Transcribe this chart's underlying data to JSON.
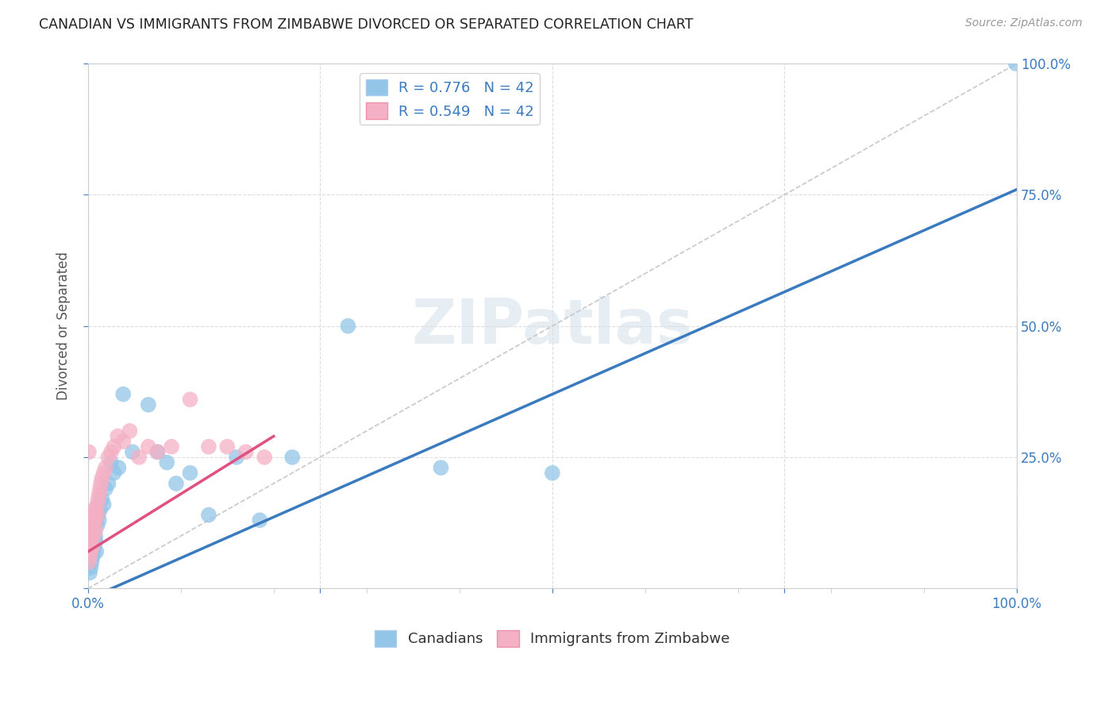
{
  "title": "CANADIAN VS IMMIGRANTS FROM ZIMBABWE DIVORCED OR SEPARATED CORRELATION CHART",
  "source": "Source: ZipAtlas.com",
  "ylabel": "Divorced or Separated",
  "watermark": "ZIPatlas",
  "legend_entries": [
    {
      "label": "R = 0.776   N = 42",
      "color": "#aec6e8"
    },
    {
      "label": "R = 0.549   N = 42",
      "color": "#f4b8c8"
    }
  ],
  "legend_bottom": [
    "Canadians",
    "Immigrants from Zimbabwe"
  ],
  "blue_line_intercept": -0.02,
  "blue_line_slope": 0.78,
  "pink_line_intercept": 0.07,
  "pink_line_slope": 1.1,
  "pink_line_xmax": 0.2,
  "diagonal_color": "#c8c8c8",
  "xlim": [
    0.0,
    1.0
  ],
  "ylim": [
    0.0,
    1.0
  ],
  "xtick_positions": [
    0.0,
    0.25,
    0.5,
    0.75,
    1.0
  ],
  "xtick_labels_show": [
    "0.0%",
    "",
    "",
    "",
    "100.0%"
  ],
  "ytick_positions": [
    0.0,
    0.25,
    0.5,
    0.75,
    1.0
  ],
  "ytick_labels_right": [
    "",
    "25.0%",
    "50.0%",
    "75.0%",
    "100.0%"
  ],
  "grid_color": "#dddddd",
  "blue_scatter_color": "#92c5e8",
  "pink_scatter_color": "#f4b0c4",
  "blue_line_color": "#3a7bbf",
  "pink_line_color": "#e05080",
  "title_color": "#222222",
  "source_color": "#999999",
  "axis_label_color": "#555555",
  "tick_color": "#3a7bbf",
  "background_color": "#ffffff",
  "canadians_x": [
    0.001,
    0.002,
    0.002,
    0.003,
    0.003,
    0.004,
    0.004,
    0.005,
    0.005,
    0.006,
    0.006,
    0.007,
    0.007,
    0.008,
    0.008,
    0.009,
    0.01,
    0.011,
    0.012,
    0.013,
    0.015,
    0.017,
    0.019,
    0.022,
    0.025,
    0.028,
    0.033,
    0.038,
    0.048,
    0.065,
    0.075,
    0.085,
    0.095,
    0.11,
    0.13,
    0.16,
    0.185,
    0.22,
    0.28,
    0.38,
    0.5,
    0.999
  ],
  "canadians_y": [
    0.05,
    0.03,
    0.07,
    0.04,
    0.08,
    0.05,
    0.09,
    0.06,
    0.1,
    0.07,
    0.11,
    0.08,
    0.12,
    0.09,
    0.1,
    0.07,
    0.12,
    0.14,
    0.13,
    0.15,
    0.17,
    0.16,
    0.19,
    0.2,
    0.24,
    0.22,
    0.23,
    0.37,
    0.26,
    0.35,
    0.26,
    0.24,
    0.2,
    0.22,
    0.14,
    0.25,
    0.13,
    0.25,
    0.5,
    0.23,
    0.22,
    1.0
  ],
  "zimbabwe_x": [
    0.001,
    0.001,
    0.002,
    0.002,
    0.003,
    0.003,
    0.004,
    0.004,
    0.005,
    0.005,
    0.006,
    0.006,
    0.007,
    0.007,
    0.008,
    0.008,
    0.009,
    0.01,
    0.01,
    0.011,
    0.012,
    0.013,
    0.014,
    0.015,
    0.017,
    0.019,
    0.022,
    0.025,
    0.028,
    0.032,
    0.038,
    0.045,
    0.055,
    0.065,
    0.075,
    0.09,
    0.11,
    0.13,
    0.15,
    0.17,
    0.19,
    0.001
  ],
  "zimbabwe_y": [
    0.05,
    0.08,
    0.06,
    0.1,
    0.07,
    0.11,
    0.09,
    0.12,
    0.08,
    0.13,
    0.1,
    0.14,
    0.12,
    0.15,
    0.11,
    0.13,
    0.15,
    0.16,
    0.14,
    0.17,
    0.18,
    0.19,
    0.2,
    0.21,
    0.22,
    0.23,
    0.25,
    0.26,
    0.27,
    0.29,
    0.28,
    0.3,
    0.25,
    0.27,
    0.26,
    0.27,
    0.36,
    0.27,
    0.27,
    0.26,
    0.25,
    0.26
  ]
}
